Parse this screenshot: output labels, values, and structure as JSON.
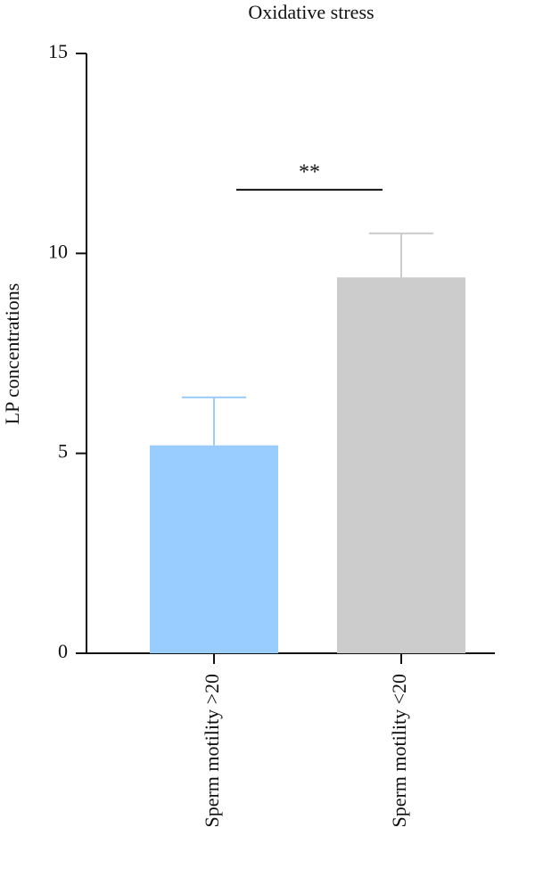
{
  "chart_data": {
    "type": "bar",
    "title": "Oxidative stress",
    "y_label": "LP concentrations",
    "categories": [
      "Sperm motility >20",
      "Sperm motility <20"
    ],
    "values": [
      5.2,
      9.4
    ],
    "errors": [
      1.2,
      1.1
    ],
    "colors": [
      "#99ccff",
      "#cccccc"
    ],
    "ylim": [
      0,
      15
    ],
    "yticks": [
      0,
      5,
      10,
      15
    ],
    "significance": "**",
    "grid": false
  }
}
